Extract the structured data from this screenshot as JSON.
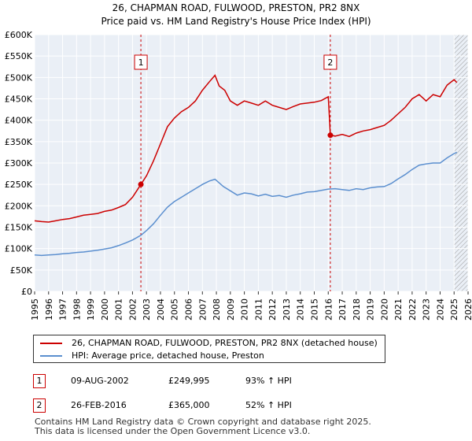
{
  "chart_data": {
    "type": "line",
    "title": "26, CHAPMAN ROAD, FULWOOD, PRESTON, PR2 8NX",
    "subtitle": "Price paid vs. HM Land Registry's House Price Index (HPI)",
    "xlim": [
      1995,
      2026
    ],
    "ylim": [
      0,
      600000
    ],
    "x_ticks": [
      1995,
      1996,
      1997,
      1998,
      1999,
      2000,
      2001,
      2002,
      2003,
      2004,
      2005,
      2006,
      2007,
      2008,
      2009,
      2010,
      2011,
      2012,
      2013,
      2014,
      2015,
      2016,
      2017,
      2018,
      2019,
      2020,
      2021,
      2022,
      2023,
      2024,
      2025,
      2026
    ],
    "y_ticks": [
      0,
      50000,
      100000,
      150000,
      200000,
      250000,
      300000,
      350000,
      400000,
      450000,
      500000,
      550000,
      600000
    ],
    "y_tick_labels": [
      "£0",
      "£50K",
      "£100K",
      "£150K",
      "£200K",
      "£250K",
      "£300K",
      "£350K",
      "£400K",
      "£450K",
      "£500K",
      "£550K",
      "£600K"
    ],
    "series": [
      {
        "name": "26, CHAPMAN ROAD, FULWOOD, PRESTON, PR2 8NX (detached house)",
        "color": "#cc0000",
        "points": [
          [
            1995.0,
            165000
          ],
          [
            1995.5,
            163000
          ],
          [
            1996.0,
            162000
          ],
          [
            1996.5,
            165000
          ],
          [
            1997.0,
            168000
          ],
          [
            1997.5,
            170000
          ],
          [
            1998.0,
            174000
          ],
          [
            1998.5,
            178000
          ],
          [
            1999.0,
            180000
          ],
          [
            1999.5,
            182000
          ],
          [
            2000.0,
            187000
          ],
          [
            2000.5,
            190000
          ],
          [
            2001.0,
            196000
          ],
          [
            2001.5,
            203000
          ],
          [
            2002.0,
            220000
          ],
          [
            2002.3,
            235000
          ],
          [
            2002.6,
            249995
          ],
          [
            2003.0,
            270000
          ],
          [
            2003.5,
            305000
          ],
          [
            2004.0,
            345000
          ],
          [
            2004.5,
            385000
          ],
          [
            2005.0,
            405000
          ],
          [
            2005.5,
            420000
          ],
          [
            2006.0,
            430000
          ],
          [
            2006.5,
            445000
          ],
          [
            2007.0,
            470000
          ],
          [
            2007.5,
            490000
          ],
          [
            2007.9,
            505000
          ],
          [
            2008.2,
            480000
          ],
          [
            2008.6,
            470000
          ],
          [
            2009.0,
            445000
          ],
          [
            2009.5,
            435000
          ],
          [
            2010.0,
            445000
          ],
          [
            2010.5,
            440000
          ],
          [
            2011.0,
            435000
          ],
          [
            2011.5,
            445000
          ],
          [
            2012.0,
            435000
          ],
          [
            2012.5,
            430000
          ],
          [
            2013.0,
            425000
          ],
          [
            2013.5,
            432000
          ],
          [
            2014.0,
            438000
          ],
          [
            2014.5,
            440000
          ],
          [
            2015.0,
            442000
          ],
          [
            2015.5,
            446000
          ],
          [
            2016.0,
            455000
          ],
          [
            2016.15,
            365000
          ],
          [
            2016.5,
            363000
          ],
          [
            2017.0,
            367000
          ],
          [
            2017.5,
            362000
          ],
          [
            2018.0,
            370000
          ],
          [
            2018.5,
            375000
          ],
          [
            2019.0,
            378000
          ],
          [
            2019.5,
            383000
          ],
          [
            2020.0,
            388000
          ],
          [
            2020.5,
            400000
          ],
          [
            2021.0,
            415000
          ],
          [
            2021.5,
            430000
          ],
          [
            2022.0,
            450000
          ],
          [
            2022.5,
            460000
          ],
          [
            2023.0,
            445000
          ],
          [
            2023.5,
            460000
          ],
          [
            2024.0,
            455000
          ],
          [
            2024.5,
            482000
          ],
          [
            2025.0,
            495000
          ],
          [
            2025.2,
            488000
          ]
        ]
      },
      {
        "name": "HPI: Average price, detached house, Preston",
        "color": "#5b8fcf",
        "points": [
          [
            1995.0,
            85000
          ],
          [
            1995.5,
            84000
          ],
          [
            1996.0,
            85000
          ],
          [
            1996.5,
            86000
          ],
          [
            1997.0,
            88000
          ],
          [
            1997.5,
            89000
          ],
          [
            1998.0,
            91000
          ],
          [
            1998.5,
            92000
          ],
          [
            1999.0,
            94000
          ],
          [
            1999.5,
            96000
          ],
          [
            2000.0,
            99000
          ],
          [
            2000.5,
            102000
          ],
          [
            2001.0,
            107000
          ],
          [
            2001.5,
            113000
          ],
          [
            2002.0,
            120000
          ],
          [
            2002.6,
            131000
          ],
          [
            2003.0,
            142000
          ],
          [
            2003.5,
            158000
          ],
          [
            2004.0,
            178000
          ],
          [
            2004.5,
            197000
          ],
          [
            2005.0,
            210000
          ],
          [
            2005.5,
            220000
          ],
          [
            2006.0,
            230000
          ],
          [
            2006.5,
            240000
          ],
          [
            2007.0,
            250000
          ],
          [
            2007.5,
            258000
          ],
          [
            2007.9,
            262000
          ],
          [
            2008.5,
            245000
          ],
          [
            2009.0,
            235000
          ],
          [
            2009.5,
            225000
          ],
          [
            2010.0,
            230000
          ],
          [
            2010.5,
            228000
          ],
          [
            2011.0,
            223000
          ],
          [
            2011.5,
            227000
          ],
          [
            2012.0,
            222000
          ],
          [
            2012.5,
            224000
          ],
          [
            2013.0,
            220000
          ],
          [
            2013.5,
            225000
          ],
          [
            2014.0,
            228000
          ],
          [
            2014.5,
            232000
          ],
          [
            2015.0,
            233000
          ],
          [
            2015.5,
            236000
          ],
          [
            2016.0,
            239000
          ],
          [
            2016.5,
            240000
          ],
          [
            2017.0,
            238000
          ],
          [
            2017.5,
            236000
          ],
          [
            2018.0,
            240000
          ],
          [
            2018.5,
            238000
          ],
          [
            2019.0,
            242000
          ],
          [
            2019.5,
            244000
          ],
          [
            2020.0,
            245000
          ],
          [
            2020.5,
            252000
          ],
          [
            2021.0,
            263000
          ],
          [
            2021.5,
            273000
          ],
          [
            2022.0,
            285000
          ],
          [
            2022.5,
            295000
          ],
          [
            2023.0,
            298000
          ],
          [
            2023.5,
            300000
          ],
          [
            2024.0,
            300000
          ],
          [
            2024.5,
            312000
          ],
          [
            2025.0,
            322000
          ],
          [
            2025.2,
            325000
          ]
        ]
      }
    ],
    "markers": [
      {
        "label": "1",
        "x": 2002.6,
        "price": 249995
      },
      {
        "label": "2",
        "x": 2016.15,
        "price": 365000
      }
    ],
    "hatched_region_start": 2025.0
  },
  "legend": {
    "line1": "26, CHAPMAN ROAD, FULWOOD, PRESTON, PR2 8NX (detached house)",
    "line2": "HPI: Average price, detached house, Preston"
  },
  "transactions": [
    {
      "num": "1",
      "date": "09-AUG-2002",
      "price": "£249,995",
      "hpi": "93% ↑ HPI"
    },
    {
      "num": "2",
      "date": "26-FEB-2016",
      "price": "£365,000",
      "hpi": "52% ↑ HPI"
    }
  ],
  "footer": {
    "line1": "Contains HM Land Registry data © Crown copyright and database right 2025.",
    "line2": "This data is licensed under the Open Government Licence v3.0."
  }
}
